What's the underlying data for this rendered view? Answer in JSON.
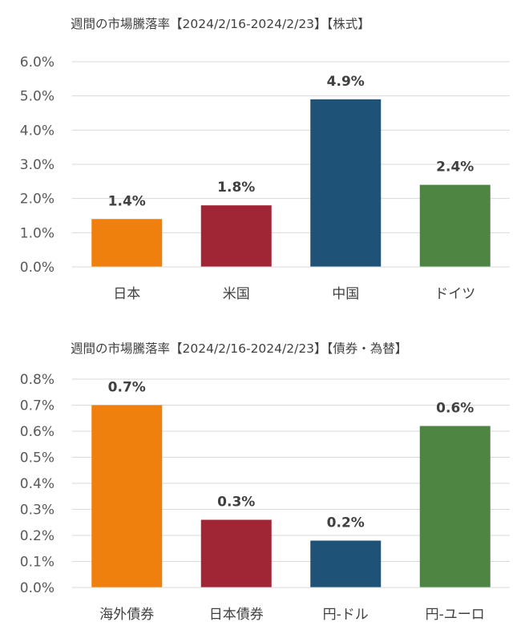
{
  "colors": {
    "orange": "#f0800d",
    "red": "#a02535",
    "blue": "#1e5276",
    "green": "#4e8542",
    "grid": "#d9d9d9",
    "text": "#404040"
  },
  "chart_data": [
    {
      "type": "bar",
      "title": "週間の市場騰落率【2024/2/16-2024/2/23】【株式】",
      "xlabel": "",
      "ylabel": "",
      "categories": [
        "日本",
        "米国",
        "中国",
        "ドイツ"
      ],
      "values": [
        1.4,
        1.8,
        4.9,
        2.4
      ],
      "data_labels": [
        "1.4%",
        "1.8%",
        "4.9%",
        "2.4%"
      ],
      "ylim": [
        0,
        6
      ],
      "yticks": [
        "0.0%",
        "1.0%",
        "2.0%",
        "3.0%",
        "4.0%",
        "5.0%",
        "6.0%"
      ],
      "grid": true,
      "bar_colors": [
        "#f0800d",
        "#a02535",
        "#1e5276",
        "#4e8542"
      ]
    },
    {
      "type": "bar",
      "title": "週間の市場騰落率【2024/2/16-2024/2/23】【債券・為替】",
      "xlabel": "",
      "ylabel": "",
      "categories": [
        "海外債券",
        "日本債券",
        "円-ドル",
        "円-ユーロ"
      ],
      "values": [
        0.7,
        0.26,
        0.18,
        0.62
      ],
      "data_labels": [
        "0.7%",
        "0.3%",
        "0.2%",
        "0.6%"
      ],
      "ylim": [
        0,
        0.8
      ],
      "yticks": [
        "0.0%",
        "0.1%",
        "0.2%",
        "0.3%",
        "0.4%",
        "0.5%",
        "0.6%",
        "0.7%",
        "0.8%"
      ],
      "grid": true,
      "bar_colors": [
        "#f0800d",
        "#a02535",
        "#1e5276",
        "#4e8542"
      ]
    }
  ]
}
